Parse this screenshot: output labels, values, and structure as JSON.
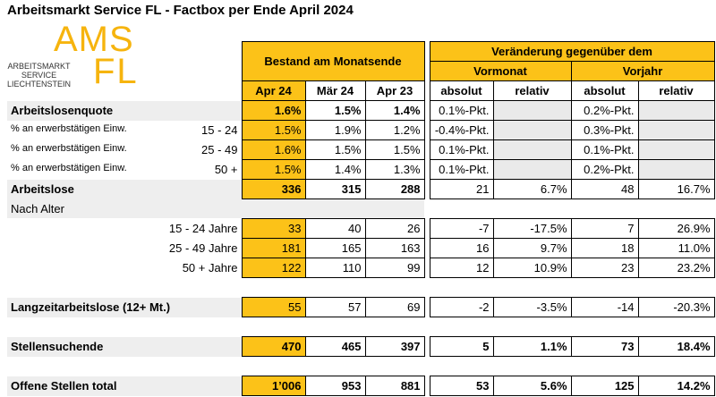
{
  "header": {
    "title": "Arbeitsmarkt Service FL - Factbox per Ende April 2024"
  },
  "logo": {
    "brand": "AMS",
    "region": "FL",
    "lines": [
      "ARBEITSMARKT",
      "SERVICE",
      "LIECHTENSTEIN"
    ]
  },
  "table": {
    "group_headers": {
      "stock": "Bestand am Monatsende",
      "change": "Veränderung gegenüber dem",
      "prev_month": "Vormonat",
      "prev_year": "Vorjahr"
    },
    "columns": [
      "Apr 24",
      "Mär 24",
      "Apr 23",
      "absolut",
      "relativ",
      "absolut",
      "relativ"
    ],
    "rows": [
      {
        "label": "Arbeitslosenquote",
        "values": [
          "1.6%",
          "1.5%",
          "1.4%",
          "0.1%-Pkt.",
          null,
          "0.2%-Pkt.",
          null
        ]
      },
      {
        "label": "% an erwerbstätigen Einw.",
        "group": "15 - 24",
        "values": [
          "1.5%",
          "1.9%",
          "1.2%",
          "-0.4%-Pkt.",
          null,
          "0.3%-Pkt.",
          null
        ]
      },
      {
        "label": "% an erwerbstätigen Einw.",
        "group": "25 - 49",
        "values": [
          "1.6%",
          "1.5%",
          "1.5%",
          "0.1%-Pkt.",
          null,
          "0.1%-Pkt.",
          null
        ]
      },
      {
        "label": "% an erwerbstätigen Einw.",
        "group": "50 +",
        "values": [
          "1.5%",
          "1.4%",
          "1.3%",
          "0.1%-Pkt.",
          null,
          "0.2%-Pkt.",
          null
        ]
      },
      {
        "label": "Arbeitslose",
        "values": [
          "336",
          "315",
          "288",
          "21",
          "6.7%",
          "48",
          "16.7%"
        ]
      },
      {
        "label": "Nach Alter"
      },
      {
        "label": "15 - 24 Jahre",
        "values": [
          "33",
          "40",
          "26",
          "-7",
          "-17.5%",
          "7",
          "26.9%"
        ]
      },
      {
        "label": "25 - 49 Jahre",
        "values": [
          "181",
          "165",
          "163",
          "16",
          "9.7%",
          "18",
          "11.0%"
        ]
      },
      {
        "label": "50 + Jahre",
        "values": [
          "122",
          "110",
          "99",
          "12",
          "10.9%",
          "23",
          "23.2%"
        ]
      },
      {
        "label": "Langzeitarbeitslose (12+ Mt.)",
        "values": [
          "55",
          "57",
          "69",
          "-2",
          "-3.5%",
          "-14",
          "-20.3%"
        ]
      },
      {
        "label": "Stellensuchende",
        "values": [
          "470",
          "465",
          "397",
          "5",
          "1.1%",
          "73",
          "18.4%"
        ]
      },
      {
        "label": "Offene Stellen total",
        "values": [
          "1’006",
          "953",
          "881",
          "53",
          "5.6%",
          "125",
          "14.2%"
        ]
      }
    ]
  }
}
